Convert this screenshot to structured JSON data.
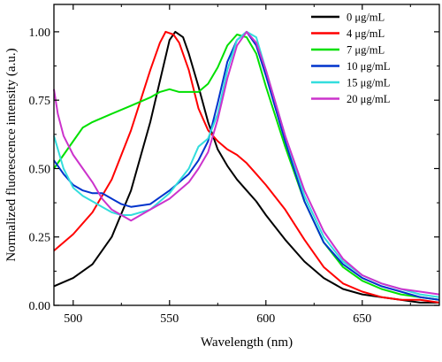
{
  "chart_data": {
    "type": "line",
    "title": "",
    "xlabel": "Wavelength (nm)",
    "ylabel": "Normalized fluorescence intensity (a.u.)",
    "xlim": [
      490,
      690
    ],
    "ylim": [
      0,
      1.1
    ],
    "x_ticks": [
      500,
      550,
      600,
      650
    ],
    "x_tick_labels": [
      "500",
      "550",
      "600",
      "650"
    ],
    "y_ticks": [
      0,
      0.25,
      0.5,
      0.75,
      1.0
    ],
    "y_tick_labels": [
      "0.00",
      "0.25",
      "0.50",
      "0.75",
      "1.00"
    ],
    "grid": false,
    "legend_position": "top-right",
    "series": [
      {
        "name": "0 μg/mL",
        "color": "#000000",
        "x": [
          490,
          500,
          510,
          520,
          530,
          540,
          545,
          550,
          553,
          557,
          560,
          565,
          570,
          575,
          580,
          585,
          590,
          595,
          600,
          610,
          620,
          630,
          640,
          650,
          660,
          670,
          680,
          690
        ],
        "y": [
          0.07,
          0.1,
          0.15,
          0.25,
          0.42,
          0.67,
          0.82,
          0.97,
          1.0,
          0.98,
          0.92,
          0.8,
          0.67,
          0.57,
          0.51,
          0.46,
          0.42,
          0.38,
          0.33,
          0.24,
          0.16,
          0.1,
          0.06,
          0.04,
          0.03,
          0.02,
          0.01,
          0.01
        ]
      },
      {
        "name": "4 μg/mL",
        "color": "#ff0000",
        "x": [
          490,
          500,
          510,
          520,
          530,
          540,
          545,
          548,
          552,
          555,
          560,
          565,
          570,
          575,
          580,
          585,
          590,
          595,
          600,
          610,
          620,
          630,
          640,
          650,
          660,
          670,
          680,
          690
        ],
        "y": [
          0.2,
          0.26,
          0.34,
          0.46,
          0.64,
          0.86,
          0.96,
          1.0,
          0.99,
          0.96,
          0.86,
          0.72,
          0.64,
          0.6,
          0.57,
          0.55,
          0.52,
          0.48,
          0.44,
          0.35,
          0.24,
          0.14,
          0.08,
          0.05,
          0.03,
          0.02,
          0.02,
          0.01
        ]
      },
      {
        "name": "7 μg/mL",
        "color": "#00e000",
        "x": [
          490,
          500,
          505,
          510,
          520,
          530,
          540,
          545,
          550,
          555,
          560,
          565,
          570,
          575,
          580,
          585,
          590,
          595,
          600,
          610,
          620,
          630,
          640,
          650,
          660,
          670,
          680,
          690
        ],
        "y": [
          0.5,
          0.6,
          0.65,
          0.67,
          0.7,
          0.73,
          0.76,
          0.78,
          0.79,
          0.78,
          0.78,
          0.78,
          0.81,
          0.87,
          0.95,
          0.99,
          0.98,
          0.92,
          0.8,
          0.58,
          0.38,
          0.23,
          0.14,
          0.09,
          0.06,
          0.04,
          0.03,
          0.02
        ]
      },
      {
        "name": "10 μg/mL",
        "color": "#0033cc",
        "x": [
          490,
          495,
          500,
          505,
          510,
          515,
          520,
          525,
          530,
          540,
          550,
          560,
          565,
          570,
          575,
          580,
          585,
          590,
          595,
          600,
          610,
          620,
          630,
          640,
          650,
          660,
          670,
          680,
          690
        ],
        "y": [
          0.53,
          0.48,
          0.44,
          0.42,
          0.41,
          0.41,
          0.39,
          0.37,
          0.36,
          0.37,
          0.42,
          0.48,
          0.53,
          0.6,
          0.74,
          0.89,
          0.97,
          1.0,
          0.95,
          0.84,
          0.6,
          0.38,
          0.23,
          0.15,
          0.1,
          0.07,
          0.05,
          0.03,
          0.02
        ]
      },
      {
        "name": "15 μg/mL",
        "color": "#33dddd",
        "x": [
          490,
          495,
          500,
          505,
          510,
          515,
          520,
          525,
          530,
          540,
          550,
          560,
          565,
          570,
          575,
          580,
          585,
          590,
          595,
          600,
          610,
          620,
          630,
          640,
          650,
          660,
          670,
          680,
          690
        ],
        "y": [
          0.62,
          0.5,
          0.43,
          0.4,
          0.38,
          0.36,
          0.34,
          0.33,
          0.33,
          0.35,
          0.41,
          0.5,
          0.58,
          0.61,
          0.7,
          0.86,
          0.97,
          1.0,
          0.98,
          0.86,
          0.62,
          0.4,
          0.25,
          0.16,
          0.11,
          0.08,
          0.06,
          0.04,
          0.03
        ]
      },
      {
        "name": "20 μg/mL",
        "color": "#cc33cc",
        "x": [
          490,
          492,
          495,
          500,
          505,
          510,
          515,
          520,
          525,
          530,
          540,
          550,
          560,
          565,
          570,
          575,
          580,
          585,
          590,
          595,
          600,
          610,
          620,
          630,
          640,
          650,
          660,
          670,
          680,
          690
        ],
        "y": [
          0.79,
          0.7,
          0.62,
          0.55,
          0.5,
          0.45,
          0.39,
          0.35,
          0.33,
          0.31,
          0.35,
          0.39,
          0.45,
          0.5,
          0.56,
          0.68,
          0.83,
          0.95,
          1.0,
          0.96,
          0.86,
          0.62,
          0.42,
          0.27,
          0.17,
          0.11,
          0.08,
          0.06,
          0.05,
          0.04
        ]
      }
    ]
  }
}
